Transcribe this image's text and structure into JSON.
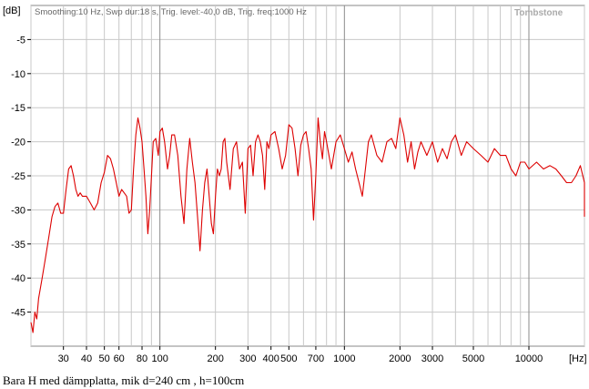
{
  "chart_data": {
    "type": "line",
    "header": "Smoothing:10 Hz, Swp dur:18 s, Trig. level:-40,0 dB, Trig. freq:1000 Hz",
    "brand": "Tombstone",
    "ylabel": "[dB]",
    "xlabel": "[Hz]",
    "x_scale": "log",
    "xlim": [
      20,
      20000
    ],
    "ylim": [
      -50,
      0
    ],
    "grid": true,
    "y_ticks": [
      {
        "value": -5,
        "label": "-5"
      },
      {
        "value": -10,
        "label": "-10"
      },
      {
        "value": -15,
        "label": "-15"
      },
      {
        "value": -20,
        "label": "-20"
      },
      {
        "value": -25,
        "label": "-25"
      },
      {
        "value": -30,
        "label": "-30"
      },
      {
        "value": -35,
        "label": "-35"
      },
      {
        "value": -40,
        "label": "-40"
      },
      {
        "value": -45,
        "label": "-45"
      }
    ],
    "x_ticks": [
      {
        "value": 30,
        "label": "30"
      },
      {
        "value": 40,
        "label": "40"
      },
      {
        "value": 50,
        "label": "50"
      },
      {
        "value": 60,
        "label": "60"
      },
      {
        "value": 80,
        "label": "80"
      },
      {
        "value": 100,
        "label": "100"
      },
      {
        "value": 200,
        "label": "200"
      },
      {
        "value": 300,
        "label": "300"
      },
      {
        "value": 400,
        "label": "400"
      },
      {
        "value": 500,
        "label": "500"
      },
      {
        "value": 700,
        "label": "700"
      },
      {
        "value": 1000,
        "label": "1000"
      },
      {
        "value": 2000,
        "label": "2000"
      },
      {
        "value": 3000,
        "label": "3000"
      },
      {
        "value": 5000,
        "label": "5000"
      },
      {
        "value": 10000,
        "label": "10000"
      }
    ],
    "minor_grid": [
      20,
      30,
      40,
      50,
      60,
      70,
      80,
      90,
      100,
      200,
      300,
      400,
      500,
      600,
      700,
      800,
      900,
      1000,
      2000,
      3000,
      4000,
      5000,
      6000,
      7000,
      8000,
      9000,
      10000,
      20000
    ],
    "series": [
      {
        "color": "#dd0000",
        "points": [
          [
            20,
            -46.5
          ],
          [
            20.5,
            -48
          ],
          [
            21,
            -45
          ],
          [
            21.5,
            -46
          ],
          [
            22,
            -43
          ],
          [
            23,
            -40
          ],
          [
            24,
            -37
          ],
          [
            25,
            -34
          ],
          [
            26,
            -31
          ],
          [
            27,
            -29.5
          ],
          [
            28,
            -29
          ],
          [
            29,
            -30.5
          ],
          [
            30,
            -30.5
          ],
          [
            31,
            -27
          ],
          [
            32,
            -24
          ],
          [
            33,
            -23.5
          ],
          [
            34,
            -25
          ],
          [
            35,
            -27
          ],
          [
            36,
            -28
          ],
          [
            37,
            -27.5
          ],
          [
            38,
            -28
          ],
          [
            40,
            -28
          ],
          [
            42,
            -29
          ],
          [
            44,
            -30
          ],
          [
            46,
            -29
          ],
          [
            48,
            -26
          ],
          [
            50,
            -24.5
          ],
          [
            52,
            -22
          ],
          [
            54,
            -22.5
          ],
          [
            56,
            -24
          ],
          [
            58,
            -26
          ],
          [
            60,
            -28
          ],
          [
            62,
            -27
          ],
          [
            64,
            -27.5
          ],
          [
            66,
            -28
          ],
          [
            68,
            -30.5
          ],
          [
            70,
            -30
          ],
          [
            72,
            -24
          ],
          [
            74,
            -19
          ],
          [
            76,
            -16.5
          ],
          [
            78,
            -18
          ],
          [
            80,
            -20
          ],
          [
            82,
            -24
          ],
          [
            84,
            -28
          ],
          [
            86,
            -33.5
          ],
          [
            88,
            -30
          ],
          [
            90,
            -25
          ],
          [
            92,
            -20
          ],
          [
            95,
            -19.5
          ],
          [
            98,
            -22
          ],
          [
            100,
            -18.5
          ],
          [
            103,
            -18
          ],
          [
            106,
            -20
          ],
          [
            110,
            -24
          ],
          [
            113,
            -22
          ],
          [
            116,
            -19
          ],
          [
            120,
            -19
          ],
          [
            125,
            -22
          ],
          [
            130,
            -28
          ],
          [
            135,
            -32
          ],
          [
            140,
            -24
          ],
          [
            145,
            -19.5
          ],
          [
            150,
            -23
          ],
          [
            155,
            -26
          ],
          [
            160,
            -31
          ],
          [
            165,
            -36
          ],
          [
            170,
            -30
          ],
          [
            175,
            -26
          ],
          [
            180,
            -24
          ],
          [
            185,
            -28
          ],
          [
            190,
            -32
          ],
          [
            195,
            -33.5
          ],
          [
            200,
            -28
          ],
          [
            205,
            -24
          ],
          [
            210,
            -25
          ],
          [
            215,
            -24
          ],
          [
            220,
            -20
          ],
          [
            225,
            -19.5
          ],
          [
            230,
            -23
          ],
          [
            240,
            -27
          ],
          [
            250,
            -21
          ],
          [
            260,
            -20
          ],
          [
            270,
            -24
          ],
          [
            280,
            -23
          ],
          [
            290,
            -30.5
          ],
          [
            300,
            -21
          ],
          [
            310,
            -20.5
          ],
          [
            320,
            -25
          ],
          [
            330,
            -20
          ],
          [
            340,
            -19
          ],
          [
            350,
            -20
          ],
          [
            360,
            -22
          ],
          [
            370,
            -27
          ],
          [
            380,
            -20
          ],
          [
            390,
            -21
          ],
          [
            400,
            -19
          ],
          [
            420,
            -18.5
          ],
          [
            440,
            -21
          ],
          [
            460,
            -24
          ],
          [
            480,
            -22
          ],
          [
            500,
            -17.5
          ],
          [
            520,
            -18
          ],
          [
            540,
            -21
          ],
          [
            560,
            -25
          ],
          [
            580,
            -20.5
          ],
          [
            600,
            -19
          ],
          [
            620,
            -18.5
          ],
          [
            640,
            -21
          ],
          [
            660,
            -24
          ],
          [
            680,
            -31.5
          ],
          [
            700,
            -25
          ],
          [
            720,
            -16.5
          ],
          [
            740,
            -20
          ],
          [
            760,
            -22.5
          ],
          [
            780,
            -18.5
          ],
          [
            800,
            -20
          ],
          [
            850,
            -24
          ],
          [
            900,
            -20
          ],
          [
            950,
            -19
          ],
          [
            1000,
            -21
          ],
          [
            1050,
            -23
          ],
          [
            1100,
            -21.5
          ],
          [
            1150,
            -24
          ],
          [
            1200,
            -26
          ],
          [
            1250,
            -28
          ],
          [
            1300,
            -24
          ],
          [
            1350,
            -20
          ],
          [
            1400,
            -19
          ],
          [
            1500,
            -22
          ],
          [
            1600,
            -23
          ],
          [
            1700,
            -20
          ],
          [
            1800,
            -19.5
          ],
          [
            1900,
            -21
          ],
          [
            2000,
            -16.5
          ],
          [
            2100,
            -19
          ],
          [
            2200,
            -23
          ],
          [
            2300,
            -20
          ],
          [
            2400,
            -24
          ],
          [
            2500,
            -21.5
          ],
          [
            2600,
            -20
          ],
          [
            2800,
            -22
          ],
          [
            3000,
            -20
          ],
          [
            3200,
            -23
          ],
          [
            3400,
            -21
          ],
          [
            3600,
            -22.5
          ],
          [
            3800,
            -20
          ],
          [
            4000,
            -19
          ],
          [
            4300,
            -22
          ],
          [
            4600,
            -20
          ],
          [
            5000,
            -21
          ],
          [
            5500,
            -22
          ],
          [
            6000,
            -23
          ],
          [
            6500,
            -21
          ],
          [
            7000,
            -22
          ],
          [
            7500,
            -22
          ],
          [
            8000,
            -24
          ],
          [
            8500,
            -25
          ],
          [
            9000,
            -23
          ],
          [
            9500,
            -23
          ],
          [
            10000,
            -24
          ],
          [
            11000,
            -23
          ],
          [
            12000,
            -24
          ],
          [
            13000,
            -23.5
          ],
          [
            14000,
            -24
          ],
          [
            15000,
            -25
          ],
          [
            16000,
            -26
          ],
          [
            17000,
            -26
          ],
          [
            18000,
            -25
          ],
          [
            19000,
            -23.5
          ],
          [
            20000,
            -26
          ],
          [
            21000,
            -29
          ],
          [
            22000,
            -31
          ]
        ]
      }
    ]
  },
  "caption": "Bara H med dämpplatta, mik d=240 cm , h=100cm"
}
